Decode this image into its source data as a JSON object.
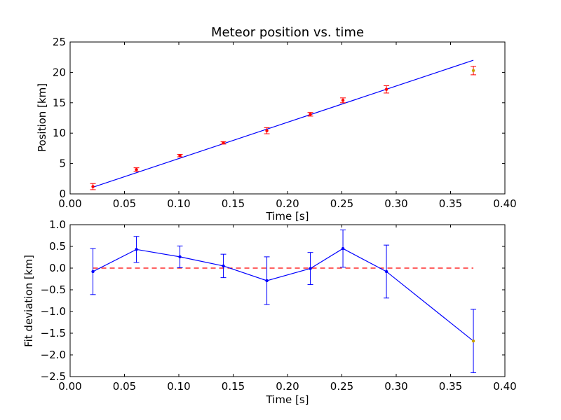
{
  "chart_data": [
    {
      "type": "scatter",
      "title": "Meteor position vs. time",
      "xlabel": "Time [s]",
      "ylabel": "Position [km]",
      "xlim": [
        0.0,
        0.4
      ],
      "ylim": [
        0,
        25
      ],
      "xticks": [
        "0.00",
        "0.05",
        "0.10",
        "0.15",
        "0.20",
        "0.25",
        "0.30",
        "0.35",
        "0.40"
      ],
      "yticks": [
        "0",
        "5",
        "10",
        "15",
        "20",
        "25"
      ],
      "grid": false,
      "colors": {
        "points": "#ff0000",
        "outlier": "#c8a000",
        "fit": "#0000ff"
      },
      "points": {
        "x": [
          0.021,
          0.061,
          0.101,
          0.141,
          0.181,
          0.221,
          0.251,
          0.291
        ],
        "y": [
          1.2,
          4.0,
          6.3,
          8.4,
          10.4,
          13.1,
          15.4,
          17.2
        ],
        "yerr": [
          0.5,
          0.3,
          0.2,
          0.2,
          0.5,
          0.3,
          0.4,
          0.6
        ]
      },
      "outlier": {
        "x": [
          0.371
        ],
        "y": [
          20.3
        ],
        "yerr": [
          0.7
        ]
      },
      "fit_line": {
        "x": [
          0.021,
          0.371
        ],
        "y": [
          1.1,
          22.0
        ]
      }
    },
    {
      "type": "line",
      "title": "",
      "xlabel": "Time [s]",
      "ylabel": "Fit deviation [km]",
      "xlim": [
        0.0,
        0.4
      ],
      "ylim": [
        -2.5,
        1.0
      ],
      "xticks": [
        "0.00",
        "0.05",
        "0.10",
        "0.15",
        "0.20",
        "0.25",
        "0.30",
        "0.35",
        "0.40"
      ],
      "yticks": [
        "1.0",
        "0.5",
        "0.0",
        "−0.5",
        "−1.0",
        "−1.5",
        "−2.0",
        "−2.5"
      ],
      "grid": false,
      "colors": {
        "series": "#0000ff",
        "outlier": "#c8a000",
        "zero_line": "#ff0000"
      },
      "series": {
        "x": [
          0.021,
          0.061,
          0.101,
          0.141,
          0.181,
          0.221,
          0.251,
          0.291,
          0.371
        ],
        "y": [
          -0.08,
          0.43,
          0.26,
          0.05,
          -0.29,
          -0.01,
          0.45,
          -0.08,
          -1.68
        ],
        "yerr": [
          0.53,
          0.3,
          0.25,
          0.27,
          0.55,
          0.37,
          0.43,
          0.61,
          0.73
        ]
      },
      "outlier_index": 8,
      "reference_line": {
        "x": [
          0.021,
          0.371
        ],
        "y": [
          0.0,
          0.0
        ],
        "style": "dashed"
      }
    }
  ]
}
